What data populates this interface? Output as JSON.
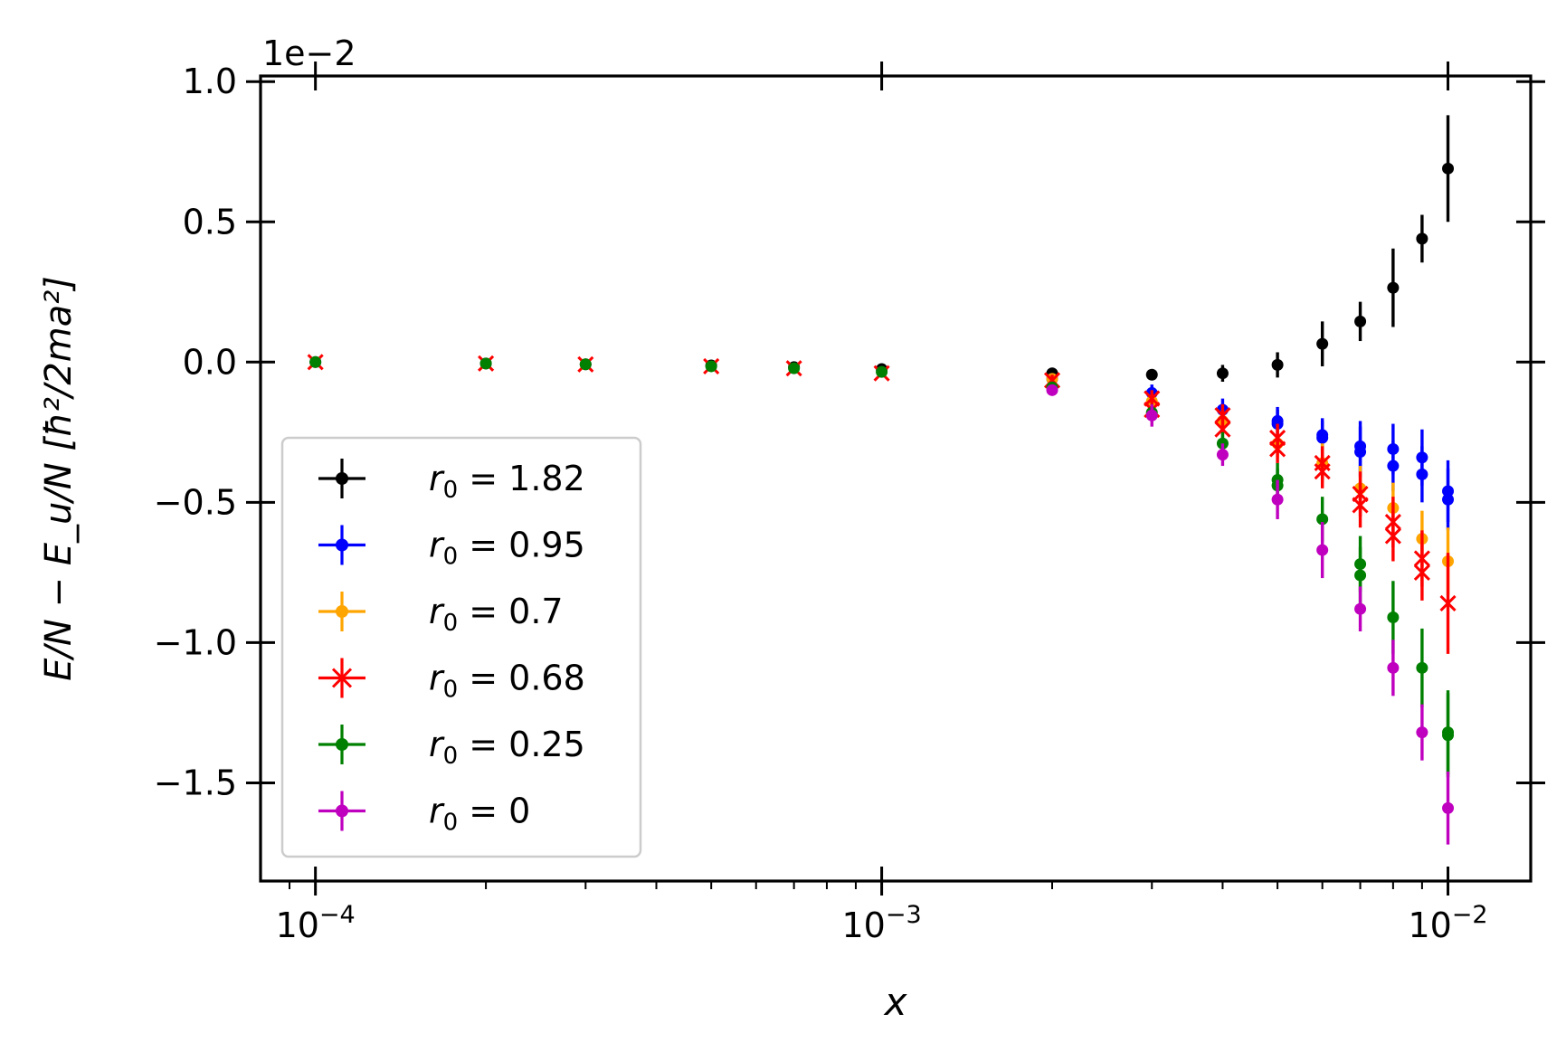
{
  "chart_data": {
    "type": "scatter",
    "x_scale": "log",
    "xlim": [
      8e-05,
      0.014
    ],
    "ylim": [
      -1.85,
      1.02
    ],
    "xlabel": "x",
    "ylabel": "E/N − E_u/N   [ħ²/2ma²]",
    "y_offset_text": "1e−2",
    "x_ticks": [
      {
        "value": 0.0001,
        "base": "10",
        "exp": "−4"
      },
      {
        "value": 0.001,
        "base": "10",
        "exp": "−3"
      },
      {
        "value": 0.01,
        "base": "10",
        "exp": "−2"
      }
    ],
    "y_ticks": [
      {
        "value": 1.0,
        "label": "1.0"
      },
      {
        "value": 0.5,
        "label": "0.5"
      },
      {
        "value": 0.0,
        "label": "0.0"
      },
      {
        "value": -0.5,
        "label": "−0.5"
      },
      {
        "value": -1.0,
        "label": "−1.0"
      },
      {
        "value": -1.5,
        "label": "−1.5"
      }
    ],
    "grid": false,
    "legend_position": "lower-left",
    "series": [
      {
        "name": "r0 = 1.82",
        "r0": "1.82",
        "color": "#000000",
        "marker": "dot",
        "points": [
          {
            "x": 0.0001,
            "y": 0.0,
            "err": 0.01
          },
          {
            "x": 0.0002,
            "y": -0.005,
            "err": 0.01
          },
          {
            "x": 0.0003,
            "y": -0.008,
            "err": 0.01
          },
          {
            "x": 0.0005,
            "y": -0.012,
            "err": 0.01
          },
          {
            "x": 0.0007,
            "y": -0.018,
            "err": 0.01
          },
          {
            "x": 0.001,
            "y": -0.025,
            "err": 0.015
          },
          {
            "x": 0.002,
            "y": -0.04,
            "err": 0.02
          },
          {
            "x": 0.003,
            "y": -0.045,
            "err": 0.02
          },
          {
            "x": 0.004,
            "y": -0.04,
            "err": 0.03
          },
          {
            "x": 0.005,
            "y": -0.01,
            "err": 0.045
          },
          {
            "x": 0.006,
            "y": 0.065,
            "err": 0.08
          },
          {
            "x": 0.007,
            "y": 0.145,
            "err": 0.07
          },
          {
            "x": 0.008,
            "y": 0.265,
            "err": 0.14
          },
          {
            "x": 0.009,
            "y": 0.44,
            "err": 0.085
          },
          {
            "x": 0.01,
            "y": 0.69,
            "err": 0.19
          }
        ]
      },
      {
        "name": "r0 = 0.95",
        "r0": "0.95",
        "color": "#0000ff",
        "marker": "dot",
        "points": [
          {
            "x": 0.002,
            "y": -0.06,
            "err": 0.02
          },
          {
            "x": 0.003,
            "y": -0.11,
            "err": 0.03
          },
          {
            "x": 0.004,
            "y": -0.17,
            "err": 0.04
          },
          {
            "x": 0.005,
            "y": -0.21,
            "err": 0.05
          },
          {
            "x": 0.005,
            "y": -0.22,
            "err": 0.05
          },
          {
            "x": 0.006,
            "y": -0.26,
            "err": 0.06
          },
          {
            "x": 0.006,
            "y": -0.27,
            "err": 0.06
          },
          {
            "x": 0.007,
            "y": -0.3,
            "err": 0.09
          },
          {
            "x": 0.007,
            "y": -0.32,
            "err": 0.09
          },
          {
            "x": 0.008,
            "y": -0.31,
            "err": 0.09
          },
          {
            "x": 0.008,
            "y": -0.37,
            "err": 0.09
          },
          {
            "x": 0.009,
            "y": -0.34,
            "err": 0.1
          },
          {
            "x": 0.009,
            "y": -0.4,
            "err": 0.1
          },
          {
            "x": 0.01,
            "y": -0.46,
            "err": 0.11
          },
          {
            "x": 0.01,
            "y": -0.49,
            "err": 0.11
          }
        ]
      },
      {
        "name": "r0 = 0.7",
        "r0": "0.7",
        "color": "#ffa500",
        "marker": "dot",
        "points": [
          {
            "x": 0.002,
            "y": -0.06,
            "err": 0.02
          },
          {
            "x": 0.003,
            "y": -0.14,
            "err": 0.03
          },
          {
            "x": 0.004,
            "y": -0.21,
            "err": 0.04
          },
          {
            "x": 0.005,
            "y": -0.29,
            "err": 0.05
          },
          {
            "x": 0.006,
            "y": -0.36,
            "err": 0.07
          },
          {
            "x": 0.007,
            "y": -0.45,
            "err": 0.08
          },
          {
            "x": 0.008,
            "y": -0.52,
            "err": 0.09
          },
          {
            "x": 0.009,
            "y": -0.63,
            "err": 0.1
          },
          {
            "x": 0.01,
            "y": -0.71,
            "err": 0.12
          }
        ]
      },
      {
        "name": "r0 = 0.68",
        "r0": "0.68",
        "color": "#ff0000",
        "marker": "cross",
        "points": [
          {
            "x": 0.0001,
            "y": 0.0,
            "err": 0.005
          },
          {
            "x": 0.0002,
            "y": -0.005,
            "err": 0.005
          },
          {
            "x": 0.0003,
            "y": -0.008,
            "err": 0.005
          },
          {
            "x": 0.0005,
            "y": -0.015,
            "err": 0.008
          },
          {
            "x": 0.0007,
            "y": -0.022,
            "err": 0.01
          },
          {
            "x": 0.001,
            "y": -0.04,
            "err": 0.015
          },
          {
            "x": 0.002,
            "y": -0.065,
            "err": 0.02
          },
          {
            "x": 0.003,
            "y": -0.13,
            "err": 0.03
          },
          {
            "x": 0.003,
            "y": -0.17,
            "err": 0.03
          },
          {
            "x": 0.004,
            "y": -0.19,
            "err": 0.04
          },
          {
            "x": 0.004,
            "y": -0.24,
            "err": 0.04
          },
          {
            "x": 0.005,
            "y": -0.27,
            "err": 0.05
          },
          {
            "x": 0.005,
            "y": -0.31,
            "err": 0.05
          },
          {
            "x": 0.006,
            "y": -0.36,
            "err": 0.06
          },
          {
            "x": 0.006,
            "y": -0.39,
            "err": 0.06
          },
          {
            "x": 0.007,
            "y": -0.47,
            "err": 0.08
          },
          {
            "x": 0.007,
            "y": -0.51,
            "err": 0.08
          },
          {
            "x": 0.008,
            "y": -0.57,
            "err": 0.09
          },
          {
            "x": 0.008,
            "y": -0.62,
            "err": 0.09
          },
          {
            "x": 0.009,
            "y": -0.7,
            "err": 0.1
          },
          {
            "x": 0.009,
            "y": -0.75,
            "err": 0.1
          },
          {
            "x": 0.01,
            "y": -0.86,
            "err": 0.18
          }
        ]
      },
      {
        "name": "r0 = 0.25",
        "r0": "0.25",
        "color": "#008000",
        "marker": "dot",
        "points": [
          {
            "x": 0.0001,
            "y": 0.0,
            "err": 0.005
          },
          {
            "x": 0.0002,
            "y": -0.005,
            "err": 0.005
          },
          {
            "x": 0.0003,
            "y": -0.008,
            "err": 0.005
          },
          {
            "x": 0.0005,
            "y": -0.015,
            "err": 0.008
          },
          {
            "x": 0.0007,
            "y": -0.022,
            "err": 0.01
          },
          {
            "x": 0.001,
            "y": -0.035,
            "err": 0.015
          },
          {
            "x": 0.002,
            "y": -0.09,
            "err": 0.02
          },
          {
            "x": 0.003,
            "y": -0.18,
            "err": 0.03
          },
          {
            "x": 0.004,
            "y": -0.29,
            "err": 0.04
          },
          {
            "x": 0.005,
            "y": -0.42,
            "err": 0.06
          },
          {
            "x": 0.005,
            "y": -0.44,
            "err": 0.06
          },
          {
            "x": 0.006,
            "y": -0.56,
            "err": 0.08
          },
          {
            "x": 0.007,
            "y": -0.72,
            "err": 0.1
          },
          {
            "x": 0.007,
            "y": -0.76,
            "err": 0.1
          },
          {
            "x": 0.008,
            "y": -0.91,
            "err": 0.13
          },
          {
            "x": 0.009,
            "y": -1.09,
            "err": 0.14
          },
          {
            "x": 0.01,
            "y": -1.32,
            "err": 0.15
          },
          {
            "x": 0.01,
            "y": -1.33,
            "err": 0.15
          }
        ]
      },
      {
        "name": "r0 = 0",
        "r0": "0",
        "color": "#bf00bf",
        "marker": "dot",
        "points": [
          {
            "x": 0.002,
            "y": -0.1,
            "err": 0.02
          },
          {
            "x": 0.003,
            "y": -0.19,
            "err": 0.04
          },
          {
            "x": 0.004,
            "y": -0.33,
            "err": 0.04
          },
          {
            "x": 0.005,
            "y": -0.49,
            "err": 0.07
          },
          {
            "x": 0.006,
            "y": -0.67,
            "err": 0.1
          },
          {
            "x": 0.007,
            "y": -0.88,
            "err": 0.08
          },
          {
            "x": 0.008,
            "y": -1.09,
            "err": 0.1
          },
          {
            "x": 0.009,
            "y": -1.32,
            "err": 0.1
          },
          {
            "x": 0.01,
            "y": -1.59,
            "err": 0.13
          }
        ]
      }
    ]
  }
}
